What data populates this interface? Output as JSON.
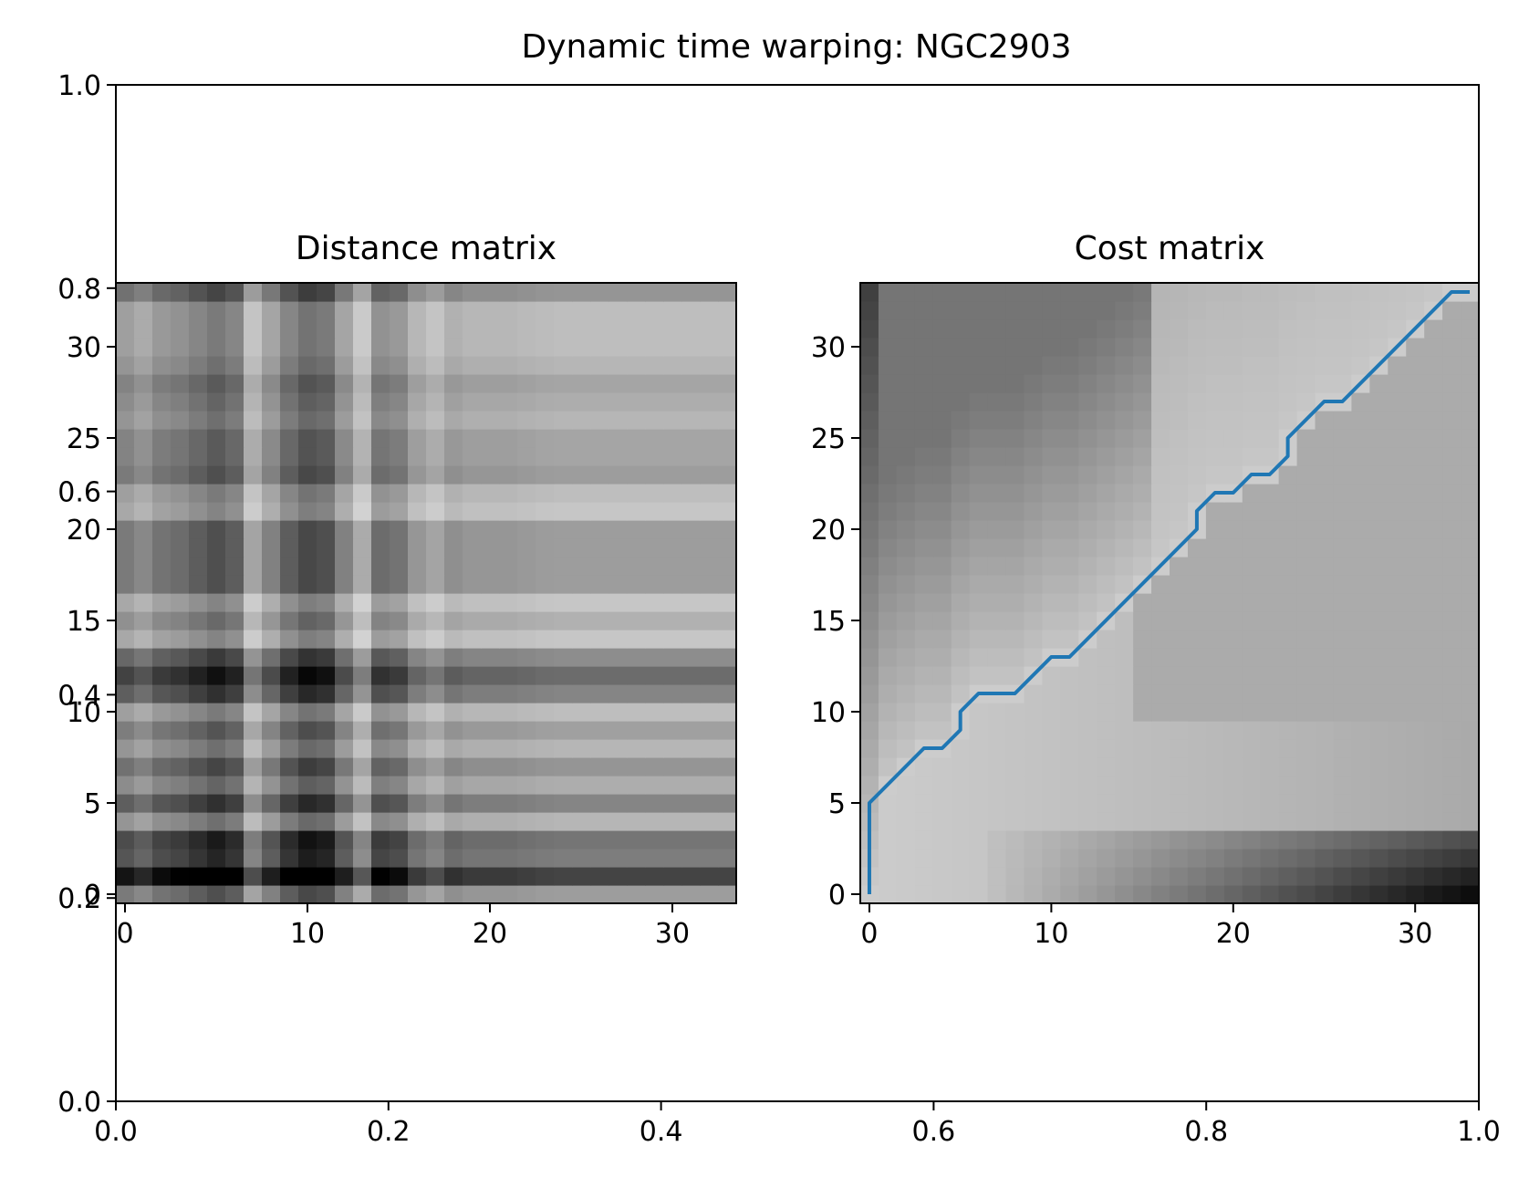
{
  "chart_data": [
    {
      "type": "empty-axes",
      "title": "Dynamic time warping: NGC2903",
      "xlim": [
        0.0,
        1.0
      ],
      "ylim": [
        0.0,
        1.0
      ],
      "xticks": [
        "0.0",
        "0.2",
        "0.4",
        "0.6",
        "0.8",
        "1.0"
      ],
      "yticks": [
        "0.0",
        "0.2",
        "0.4",
        "0.6",
        "0.8",
        "1.0"
      ]
    },
    {
      "type": "heatmap",
      "title": "Distance matrix",
      "n": 34,
      "xlim": [
        -0.5,
        33.5
      ],
      "ylim": [
        -0.5,
        33.5
      ],
      "xticks": [
        "0",
        "10",
        "20",
        "30"
      ],
      "yticks": [
        "0",
        "5",
        "10",
        "15",
        "20",
        "25",
        "30"
      ],
      "colormap": "gray_r",
      "row_profile": [
        0.3,
        0.85,
        0.5,
        0.55,
        0.15,
        0.45,
        0.2,
        0.35,
        0.15,
        0.28,
        0.1,
        0.45,
        0.6,
        0.4,
        0.05,
        0.18,
        0.05,
        0.3,
        0.3,
        0.3,
        0.3,
        0.05,
        0.1,
        0.3,
        0.25,
        0.25,
        0.15,
        0.2,
        0.25,
        0.15,
        0.1,
        0.1,
        0.1,
        0.35
      ],
      "col_profile": [
        0.5,
        0.4,
        0.55,
        0.6,
        0.7,
        0.8,
        0.7,
        0.2,
        0.45,
        0.7,
        0.85,
        0.8,
        0.45,
        0.15,
        0.6,
        0.55,
        0.3,
        0.2,
        0.35,
        0.3,
        0.3,
        0.3,
        0.28,
        0.26,
        0.25,
        0.25,
        0.25,
        0.25,
        0.25,
        0.25,
        0.25,
        0.25,
        0.25,
        0.25
      ]
    },
    {
      "type": "heatmap",
      "title": "Cost matrix",
      "n": 34,
      "xlim": [
        -0.5,
        33.5
      ],
      "ylim": [
        -0.5,
        33.5
      ],
      "xticks": [
        "0",
        "10",
        "20",
        "30"
      ],
      "yticks": [
        "0",
        "5",
        "10",
        "15",
        "20",
        "25",
        "30"
      ],
      "colormap": "gray_r",
      "max_value": 100,
      "warping_path": {
        "color": "#1f77b4",
        "x": [
          0,
          0,
          1,
          2,
          3,
          4,
          5,
          5,
          6,
          7,
          8,
          9,
          10,
          11,
          12,
          13,
          14,
          15,
          16,
          17,
          18,
          18,
          19,
          20,
          21,
          22,
          23,
          23,
          24,
          25,
          26,
          27,
          28,
          29,
          30,
          31,
          32,
          33
        ],
        "y": [
          0,
          5,
          6,
          7,
          8,
          8,
          9,
          10,
          11,
          11,
          11,
          12,
          13,
          13,
          14,
          15,
          16,
          17,
          18,
          19,
          20,
          21,
          22,
          22,
          23,
          23,
          24,
          25,
          26,
          27,
          27,
          28,
          29,
          30,
          31,
          32,
          33,
          33
        ]
      }
    }
  ]
}
